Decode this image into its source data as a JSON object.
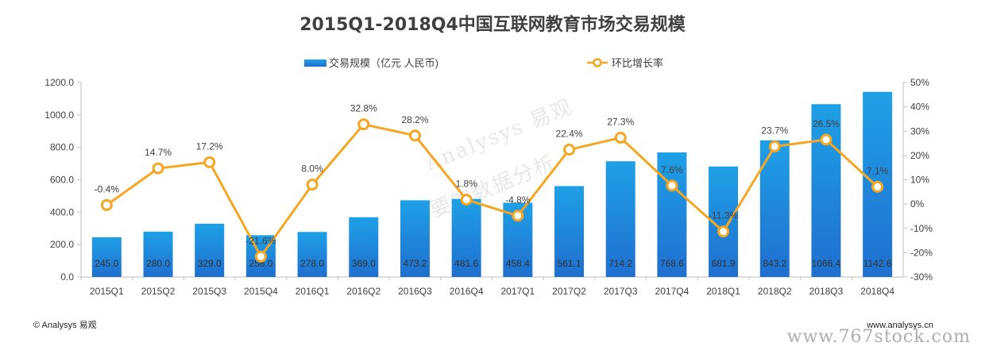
{
  "chart_data": {
    "type": "bar",
    "title": "2015Q1-2018Q4中国互联网教育市场交易规模",
    "categories": [
      "2015Q1",
      "2015Q2",
      "2015Q3",
      "2015Q4",
      "2016Q1",
      "2016Q2",
      "2016Q3",
      "2016Q4",
      "2017Q1",
      "2017Q2",
      "2017Q3",
      "2017Q4",
      "2018Q1",
      "2018Q2",
      "2018Q3",
      "2018Q4"
    ],
    "series": [
      {
        "name": "交易规模（亿元 人民币)",
        "type": "bar",
        "axis": "left",
        "color": "#1e8fd8",
        "values": [
          245.0,
          280.0,
          329.0,
          258.0,
          278.0,
          369.0,
          473.2,
          481.6,
          458.4,
          561.1,
          714.2,
          768.6,
          681.9,
          843.2,
          1066.4,
          1142.6
        ],
        "labels": [
          "245.0",
          "280.0",
          "329.0",
          "258.0",
          "278.0",
          "369.0",
          "473.2",
          "481.6",
          "458.4",
          "561.1",
          "714.2",
          "768.6",
          "681.9",
          "843.2",
          "1066.4",
          "1142.6"
        ]
      },
      {
        "name": "环比增长率",
        "type": "line",
        "axis": "right",
        "color": "#f5a623",
        "values": [
          -0.4,
          14.7,
          17.2,
          -21.6,
          8.0,
          32.8,
          28.2,
          1.8,
          -4.8,
          22.4,
          27.3,
          7.6,
          -11.3,
          23.7,
          26.5,
          7.1
        ],
        "labels": [
          "-0.4%",
          "14.7%",
          "17.2%",
          "-21.6%",
          "8.0%",
          "32.8%",
          "28.2%",
          "1.8%",
          "-4.8%",
          "22.4%",
          "27.3%",
          "7.6%",
          "-11.3%",
          "23.7%",
          "26.5%",
          "7.1%"
        ]
      }
    ],
    "y_left": {
      "range": [
        0,
        1200
      ],
      "ticks": [
        0,
        200,
        400,
        600,
        800,
        1000,
        1200
      ],
      "tick_labels": [
        "0.0",
        "200.0",
        "400.0",
        "600.0",
        "800.0",
        "1000.0",
        "1200.0"
      ]
    },
    "y_right": {
      "range": [
        -30,
        50
      ],
      "ticks": [
        -30,
        -20,
        -10,
        0,
        10,
        20,
        30,
        40,
        50
      ],
      "tick_labels": [
        "-30%",
        "-20%",
        "-10%",
        "0%",
        "10%",
        "20%",
        "30%",
        "40%",
        "50%"
      ]
    },
    "grid": false,
    "legend": "top-center"
  },
  "footer": {
    "left": "© Analysys 易观",
    "right": "www.analysys.cn"
  },
  "watermarks": {
    "center": "Analysys 易观",
    "center_sub": "你要的数据分析",
    "corner": "www.767stock.com"
  },
  "colors": {
    "bar": "#1e8fd8",
    "line": "#f5a623"
  }
}
